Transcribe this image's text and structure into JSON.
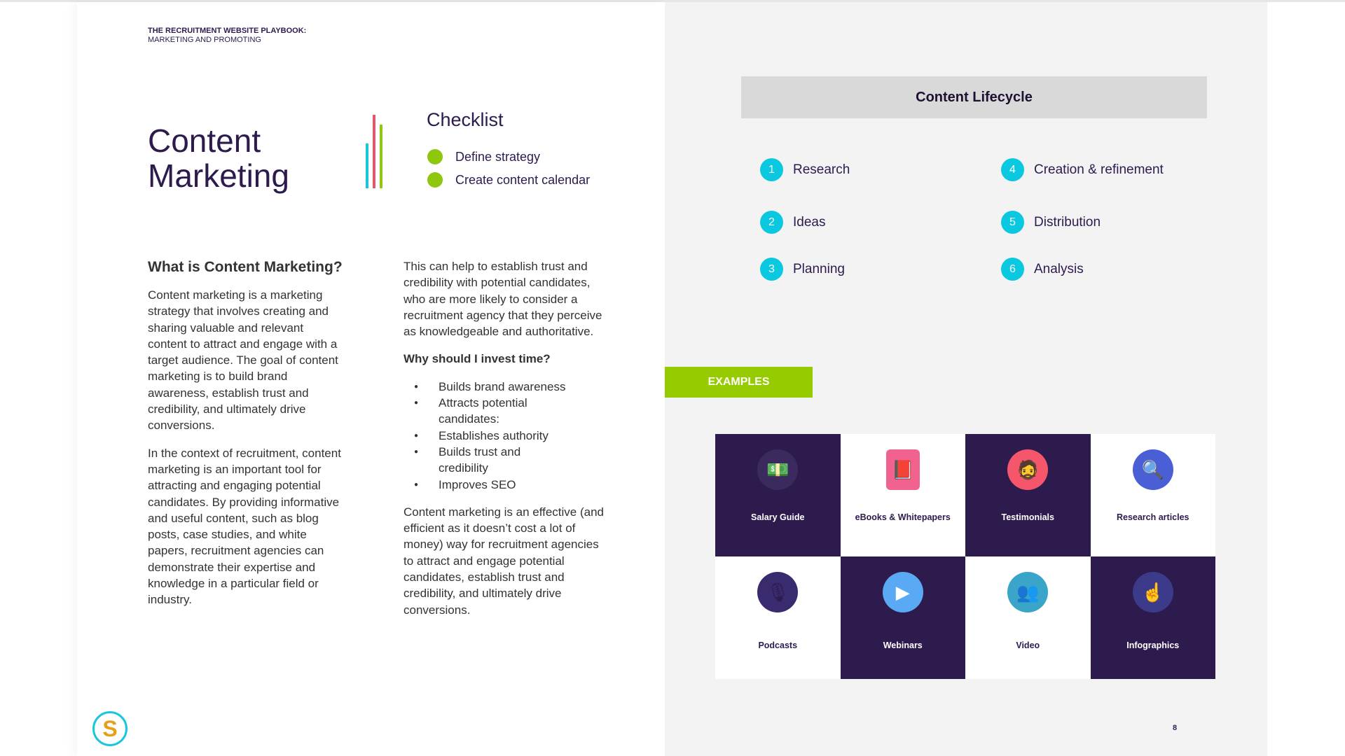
{
  "header": {
    "line1": "THE RECRUITMENT WEBSITE PLAYBOOK:",
    "line2": "MARKETING AND PROMOTING"
  },
  "title": {
    "line1": "Content",
    "line2": "Marketing"
  },
  "accent_bars": [
    "#19c6dc",
    "#e05a6e",
    "#8fc70f"
  ],
  "checklist": {
    "title": "Checklist",
    "items": [
      "Define strategy",
      "Create content calendar"
    ]
  },
  "left_column": {
    "heading": "What is Content Marketing?",
    "paragraphs": [
      "Content marketing is a marketing strategy that involves creating and sharing valuable and relevant content to attract and engage with a target audience. The goal of content marketing is to build brand awareness, establish trust and credibility, and ultimately drive conversions.",
      "In the context of recruitment, content marketing is an important tool for attracting and engaging potential candidates. By providing informative and useful content, such as blog posts, case studies, and white papers, recruitment agencies can demonstrate their expertise and knowledge in a particular field or industry."
    ]
  },
  "middle_column": {
    "intro": "This can help to establish trust and credibility with potential candidates, who are more likely to consider a recruitment agency that they perceive as knowledgeable and authoritative.",
    "subheading": "Why should I invest time?",
    "bullets": [
      "Builds brand awareness",
      "Attracts potential candidates:",
      "Establishes authority",
      "Builds trust and credibility",
      "Improves SEO"
    ],
    "closing": "Content marketing is an effective (and efficient as it doesn’t cost a lot of money) way for recruitment agencies to attract and engage potential candidates, establish trust and credibility, and ultimately drive conversions."
  },
  "lifecycle": {
    "title": "Content Lifecycle",
    "steps": [
      {
        "num": "1",
        "label": "Research"
      },
      {
        "num": "2",
        "label": "Ideas"
      },
      {
        "num": "3",
        "label": "Planning"
      },
      {
        "num": "4",
        "label": "Creation & refinement"
      },
      {
        "num": "5",
        "label": "Distribution"
      },
      {
        "num": "6",
        "label": "Analysis"
      }
    ]
  },
  "examples": {
    "label": "EXAMPLES",
    "items": [
      {
        "label": "Salary Guide",
        "icon": "money-icon"
      },
      {
        "label": "eBooks & Whitepapers",
        "icon": "ebook-icon"
      },
      {
        "label": "Testimonials",
        "icon": "person-icon"
      },
      {
        "label": "Research articles",
        "icon": "job-search-icon"
      },
      {
        "label": "Podcasts",
        "icon": "microphone-icon"
      },
      {
        "label": "Webinars",
        "icon": "video-screen-icon"
      },
      {
        "label": "Video",
        "icon": "people-icon"
      },
      {
        "label": "Infographics",
        "icon": "touch-hand-icon"
      }
    ]
  },
  "colors": {
    "brand_dark": "#2d1b4e",
    "accent_cyan": "#0ac8e0",
    "accent_green": "#96cb00"
  },
  "page_number": "8"
}
